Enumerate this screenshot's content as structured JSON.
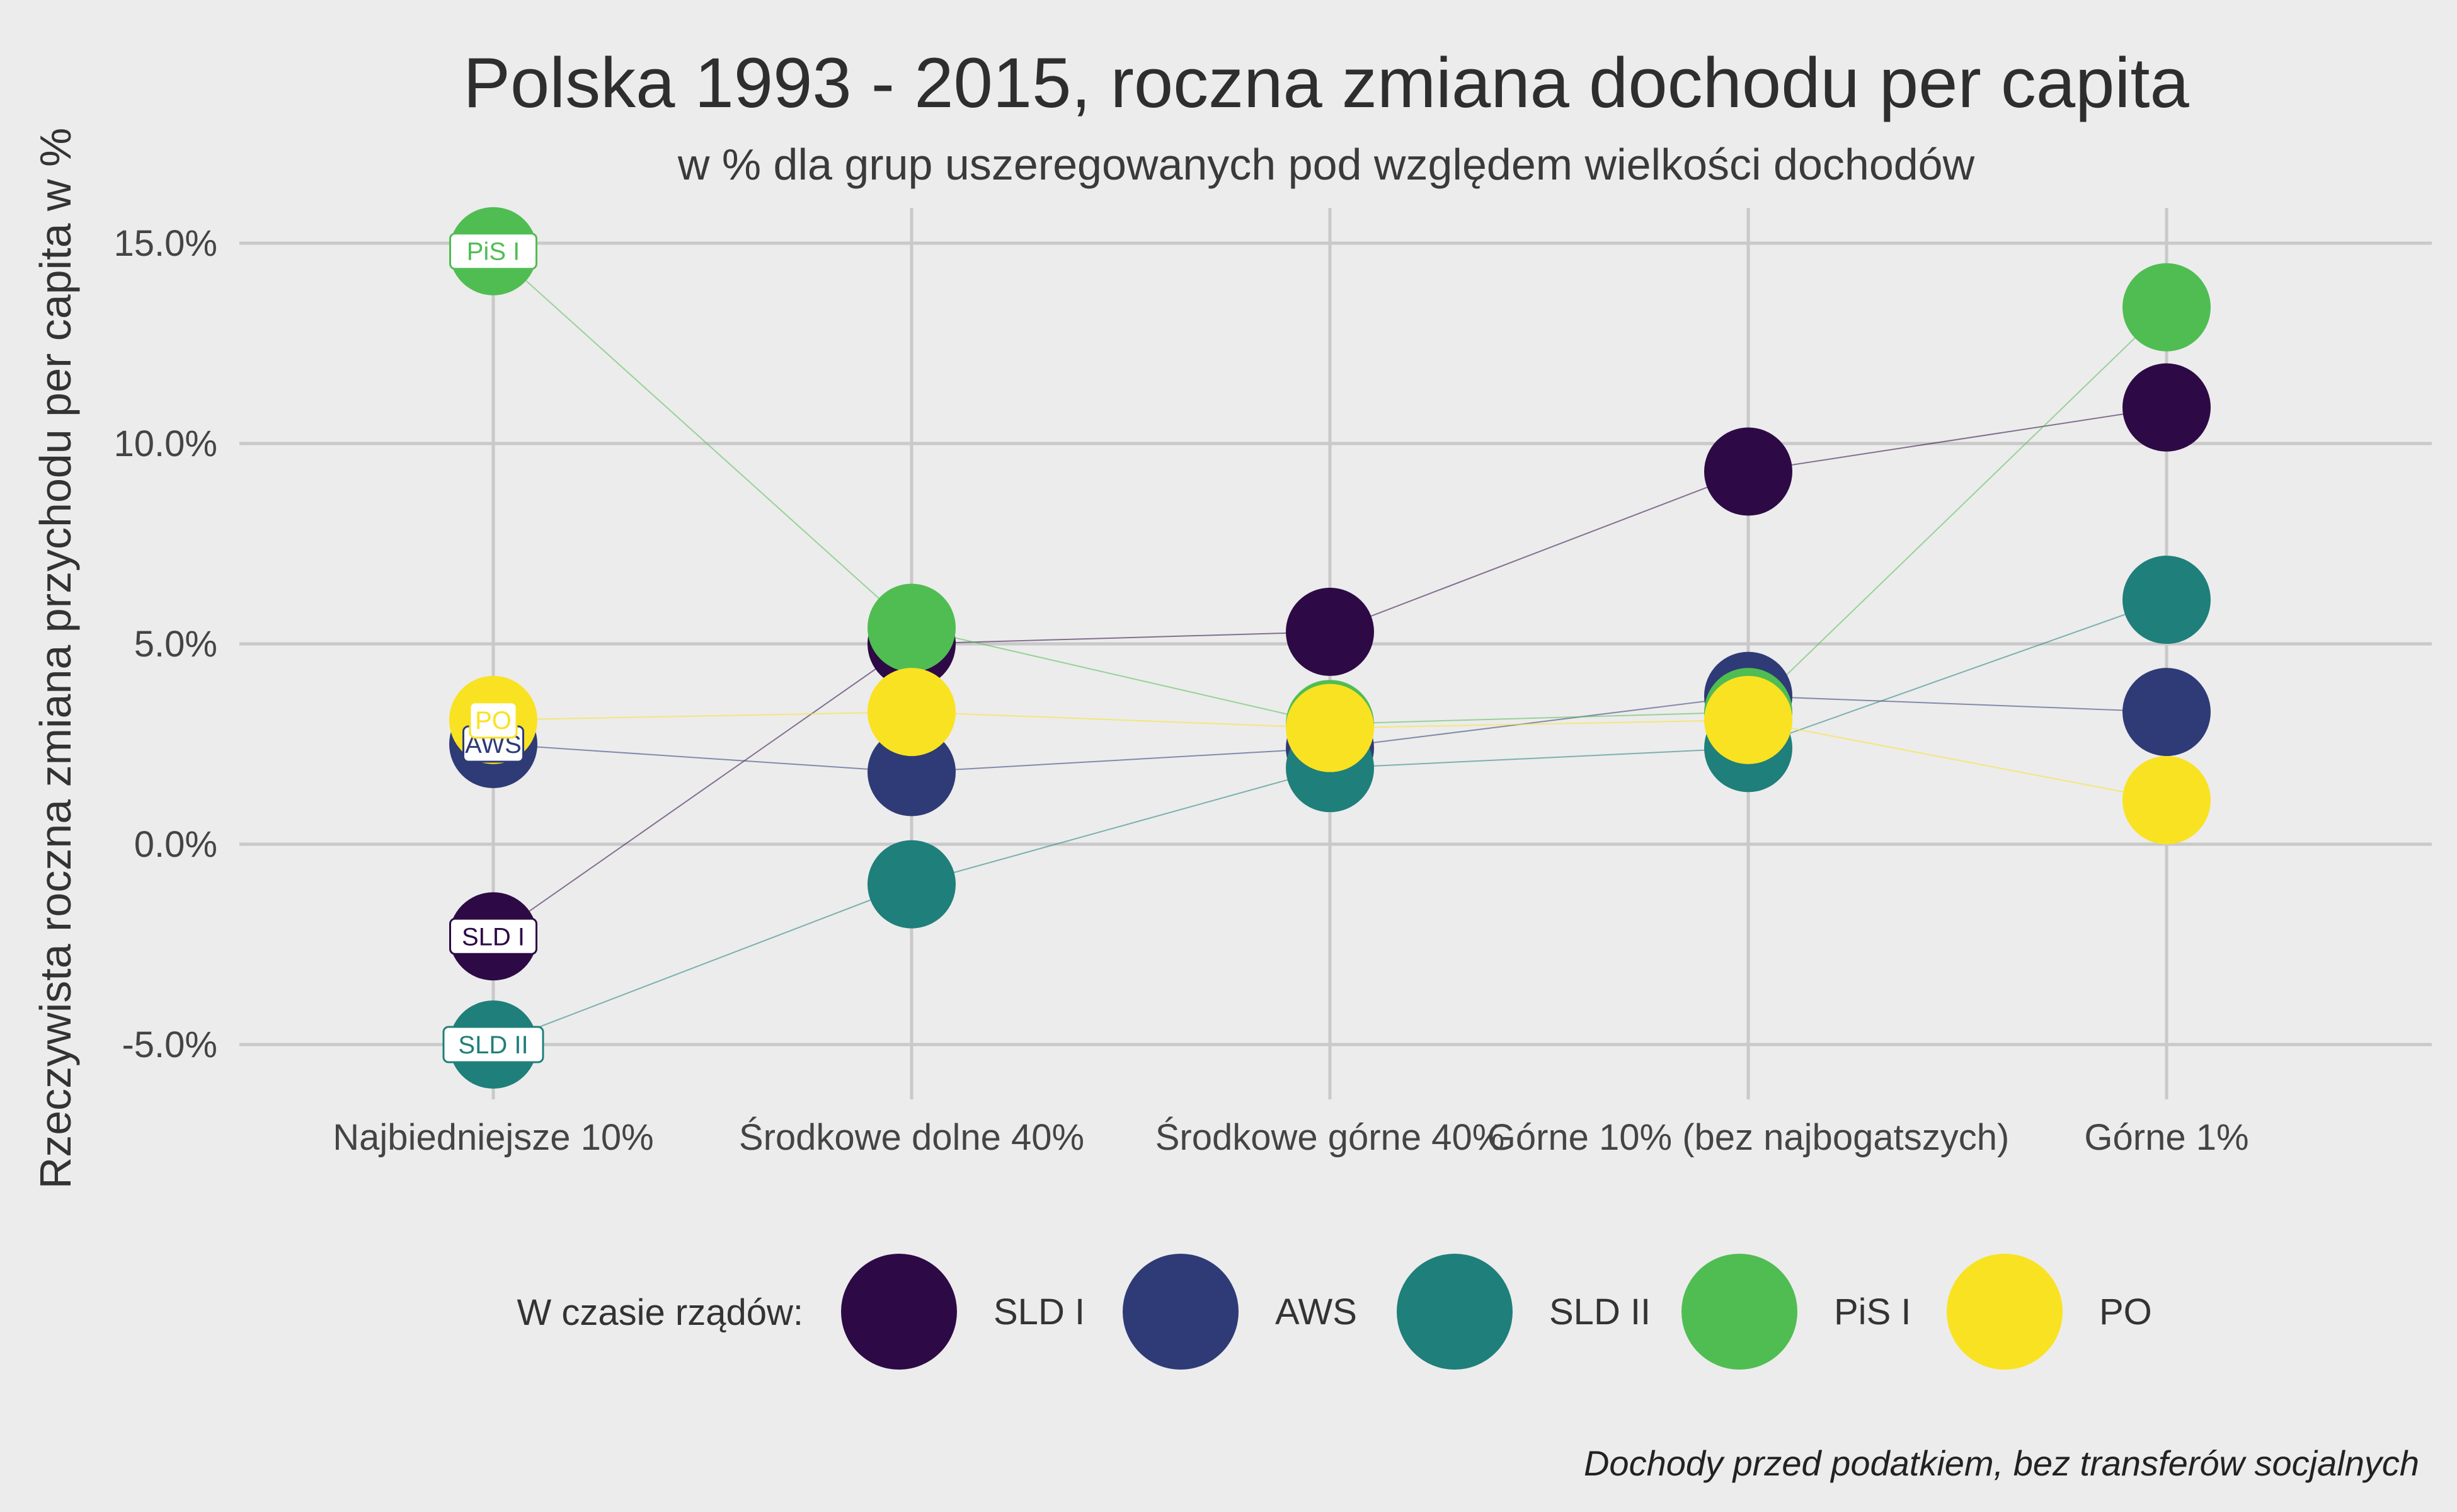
{
  "chart_data": {
    "type": "scatter",
    "title": "Polska 1993 - 2015, roczna zmiana dochodu per capita",
    "subtitle": "w % dla grup uszeregowanych pod względem wielkości dochodów",
    "xlabel": "",
    "ylabel": "Rzeczywista roczna zmiana przychodu per capita w %",
    "categories": [
      "Najbiedniejsze 10%",
      "Środkowe dolne 40%",
      "Środkowe górne 40%",
      "Górne 10% (bez najbogatszych)",
      "Górne 1%"
    ],
    "y_ticks": [
      -5,
      0,
      5,
      10,
      15
    ],
    "y_tick_labels": [
      "-5.0%",
      "0.0%",
      "5.0%",
      "10.0%",
      "15.0%"
    ],
    "ylim": [
      -6.5,
      15.8
    ],
    "grid": true,
    "legend_title": "W czasie rządów:",
    "legend_position": "bottom",
    "caption": "Dochody przed podatkiem, bez transferów socjalnych",
    "series": [
      {
        "name": "SLD I",
        "color": "#2d0a45",
        "values": [
          -2.3,
          5.0,
          5.3,
          9.3,
          10.9
        ]
      },
      {
        "name": "AWS",
        "color": "#2e3b76",
        "values": [
          2.5,
          1.8,
          2.4,
          3.7,
          3.3
        ]
      },
      {
        "name": "SLD II",
        "color": "#1f7f7a",
        "values": [
          -5.0,
          -1.0,
          1.9,
          2.4,
          6.1
        ]
      },
      {
        "name": "PiS I",
        "color": "#50bd52",
        "values": [
          14.8,
          5.4,
          3.0,
          3.3,
          13.4
        ]
      },
      {
        "name": "PO",
        "color": "#f9e221",
        "values": [
          3.1,
          3.3,
          2.9,
          3.1,
          1.1
        ]
      }
    ]
  }
}
